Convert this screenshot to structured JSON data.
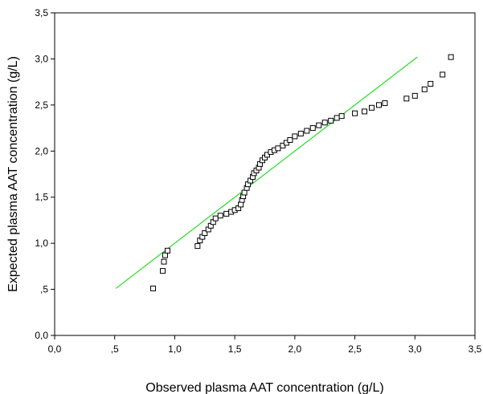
{
  "chart_data": {
    "type": "scatter",
    "title": "",
    "xlabel": "Observed plasma AAT concentration (g/L)",
    "ylabel": "Expected plasma AAT concentration (g/L)",
    "xlim": [
      0,
      3.5
    ],
    "ylim": [
      0,
      3.5
    ],
    "x_ticks": [
      0,
      0.5,
      1,
      1.5,
      2,
      2.5,
      3,
      3.5
    ],
    "x_tick_labels": [
      "0,0",
      ",5",
      "1,0",
      "1,5",
      "2,0",
      "2,5",
      "3,0",
      "3,5"
    ],
    "y_ticks": [
      0,
      0.5,
      1,
      1.5,
      2,
      2.5,
      3,
      3.5
    ],
    "y_tick_labels": [
      "0,0",
      ",5",
      "1,0",
      "1,5",
      "2,0",
      "2,5",
      "3,0",
      "3,5"
    ],
    "grid": false,
    "reference_line": {
      "x": [
        0.51,
        3.02
      ],
      "y": [
        0.51,
        3.02
      ],
      "color": "#22dd22"
    },
    "marker": {
      "shape": "square",
      "filled": false,
      "color": "#000000"
    },
    "points": [
      [
        0.82,
        0.51
      ],
      [
        0.9,
        0.7
      ],
      [
        0.91,
        0.8
      ],
      [
        0.92,
        0.87
      ],
      [
        0.94,
        0.92
      ],
      [
        1.19,
        0.97
      ],
      [
        1.21,
        1.03
      ],
      [
        1.23,
        1.07
      ],
      [
        1.25,
        1.11
      ],
      [
        1.28,
        1.15
      ],
      [
        1.3,
        1.19
      ],
      [
        1.32,
        1.23
      ],
      [
        1.34,
        1.27
      ],
      [
        1.38,
        1.3
      ],
      [
        1.43,
        1.32
      ],
      [
        1.47,
        1.34
      ],
      [
        1.5,
        1.36
      ],
      [
        1.53,
        1.38
      ],
      [
        1.55,
        1.42
      ],
      [
        1.56,
        1.47
      ],
      [
        1.57,
        1.51
      ],
      [
        1.58,
        1.55
      ],
      [
        1.6,
        1.6
      ],
      [
        1.61,
        1.64
      ],
      [
        1.63,
        1.68
      ],
      [
        1.65,
        1.72
      ],
      [
        1.66,
        1.76
      ],
      [
        1.68,
        1.79
      ],
      [
        1.7,
        1.82
      ],
      [
        1.71,
        1.86
      ],
      [
        1.73,
        1.9
      ],
      [
        1.75,
        1.93
      ],
      [
        1.77,
        1.96
      ],
      [
        1.8,
        1.99
      ],
      [
        1.83,
        2.01
      ],
      [
        1.86,
        2.03
      ],
      [
        1.9,
        2.06
      ],
      [
        1.93,
        2.09
      ],
      [
        1.96,
        2.12
      ],
      [
        2.0,
        2.16
      ],
      [
        2.05,
        2.19
      ],
      [
        2.1,
        2.22
      ],
      [
        2.15,
        2.25
      ],
      [
        2.2,
        2.28
      ],
      [
        2.25,
        2.31
      ],
      [
        2.3,
        2.33
      ],
      [
        2.35,
        2.36
      ],
      [
        2.39,
        2.38
      ],
      [
        2.5,
        2.41
      ],
      [
        2.58,
        2.43
      ],
      [
        2.64,
        2.47
      ],
      [
        2.7,
        2.5
      ],
      [
        2.75,
        2.52
      ],
      [
        2.93,
        2.57
      ],
      [
        3.0,
        2.6
      ],
      [
        3.08,
        2.67
      ],
      [
        3.13,
        2.73
      ],
      [
        3.23,
        2.83
      ],
      [
        3.3,
        3.02
      ]
    ]
  }
}
